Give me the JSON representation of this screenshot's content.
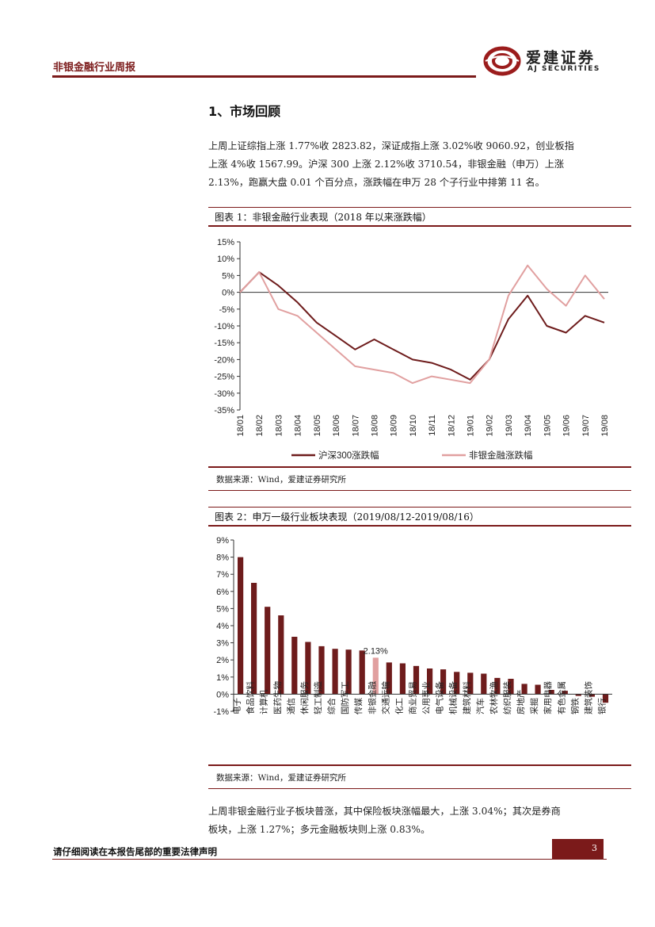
{
  "header": {
    "title": "非银金融行业周报"
  },
  "logo": {
    "cn": "爱建证券",
    "en": "AJ SECURITIES"
  },
  "section": {
    "title": "1、市场回顾"
  },
  "intro": [
    "上周上证综指上涨 1.77%收 2823.82，深证成指上涨 3.02%收 9060.92，创业板指",
    "上涨 4%收 1567.99。沪深 300 上涨 2.12%收 3710.54，非银金融（申万）上涨",
    "2.13%，跑赢大盘 0.01 个百分点，涨跌幅在申万 28 个子行业中排第 11 名。"
  ],
  "fig1": {
    "title": "图表 1：非银金融行业表现（2018 年以来涨跌幅）",
    "source": "数据来源：Wind，爱建证券研究所"
  },
  "fig2": {
    "title": "图表 2：申万一级行业板块表现（2019/08/12-2019/08/16）",
    "source": "数据来源：Wind，爱建证券研究所"
  },
  "outro": [
    "上周非银金融行业子板块普涨，其中保险板块涨幅最大，上涨 3.04%；其次是券商",
    "板块，上涨 1.27%；多元金融板块则上涨 0.83%。"
  ],
  "footer": {
    "notice": "请仔细阅读在本报告尾部的重要法律声明",
    "page": "3"
  },
  "chart_data": [
    {
      "type": "line",
      "x": [
        "18/01",
        "18/02",
        "18/03",
        "18/04",
        "18/05",
        "18/06",
        "18/07",
        "18/08",
        "18/09",
        "18/10",
        "18/11",
        "18/12",
        "19/01",
        "19/02",
        "19/03",
        "19/04",
        "19/05",
        "19/06",
        "19/07",
        "19/08"
      ],
      "ylim": [
        -35,
        15
      ],
      "yticks": [
        "15%",
        "10%",
        "5%",
        "0%",
        "-5%",
        "-10%",
        "-15%",
        "-20%",
        "-25%",
        "-30%",
        "-35%"
      ],
      "series": [
        {
          "name": "沪深300涨跌幅",
          "color": "#6e1c1c",
          "values": [
            0,
            6,
            2,
            -3,
            -9,
            -13,
            -17,
            -14,
            -17,
            -20,
            -21,
            -23,
            -26,
            -20,
            -8,
            -1,
            -10,
            -12,
            -7,
            -9
          ]
        },
        {
          "name": "非银金融涨跌幅",
          "color": "#e1a0a0",
          "values": [
            0,
            6,
            -5,
            -7,
            -12,
            -17,
            -22,
            -23,
            -24,
            -27,
            -25,
            -26,
            -27,
            -20,
            -1,
            8,
            1,
            -4,
            5,
            -2
          ]
        }
      ]
    },
    {
      "type": "bar",
      "categories": [
        "电子",
        "食品饮料",
        "计算机",
        "医药生物",
        "通信",
        "休闲服务",
        "轻工制造",
        "综合",
        "国防军工",
        "传媒",
        "非银金融",
        "交通运输",
        "化工",
        "商业贸易",
        "公用事业",
        "电气设备",
        "机械设备",
        "建筑材料",
        "汽车",
        "农林牧渔",
        "纺织服装",
        "房地产",
        "采掘",
        "家用电器",
        "有色金属",
        "钢铁",
        "建筑装饰",
        "银行"
      ],
      "values": [
        8.0,
        6.5,
        5.1,
        4.6,
        3.35,
        3.05,
        2.8,
        2.65,
        2.6,
        2.55,
        2.13,
        1.85,
        1.8,
        1.65,
        1.5,
        1.45,
        1.3,
        1.25,
        1.2,
        0.95,
        0.9,
        0.6,
        0.55,
        0.25,
        0.2,
        -0.1,
        -0.15,
        -0.5
      ],
      "highlight": "非银金融",
      "highlight_label": "2.13%",
      "ylim": [
        -1,
        9
      ],
      "yticks": [
        "9%",
        "8%",
        "7%",
        "6%",
        "5%",
        "4%",
        "3%",
        "2%",
        "1%",
        "0%",
        "-1%"
      ],
      "bar_color": "#6e1c1c",
      "highlight_color": "#e1a0a0"
    }
  ]
}
